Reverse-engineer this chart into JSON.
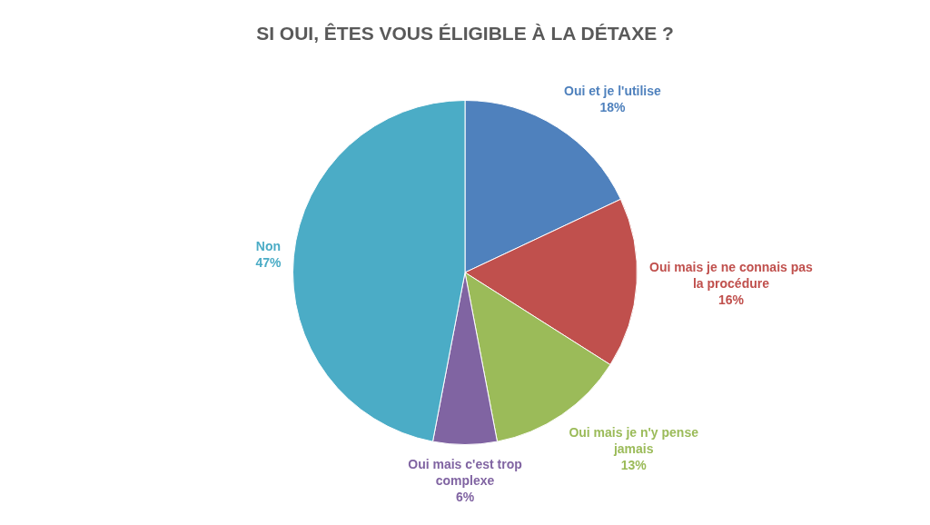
{
  "chart_data": {
    "type": "pie",
    "title": "SI OUI, ÊTES VOUS ÉLIGIBLE À LA DÉTAXE ?",
    "categories": [
      "Oui et je l'utilise",
      "Oui mais je ne connais pas la procédure",
      "Oui mais je n'y pense jamais",
      "Oui mais c'est trop complexe",
      "Non"
    ],
    "values": [
      18,
      16,
      13,
      6,
      47
    ],
    "colors": [
      "#4f81bd",
      "#c0504d",
      "#9bbb59",
      "#8064a2",
      "#4bacc6"
    ],
    "value_labels": [
      "18%",
      "16%",
      "13%",
      "6%",
      "47%"
    ]
  }
}
